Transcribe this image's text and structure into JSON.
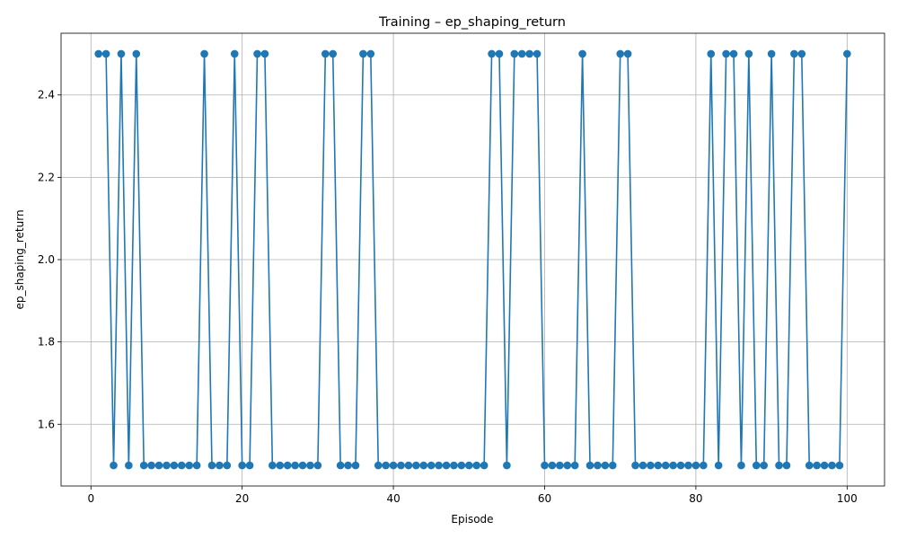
{
  "chart_data": {
    "type": "line",
    "title": "Training – ep_shaping_return",
    "xlabel": "Episode",
    "ylabel": "ep_shaping_return",
    "xlim": [
      -3.95,
      104.95
    ],
    "ylim": [
      1.45,
      2.55
    ],
    "xticks": [
      0,
      20,
      40,
      60,
      80,
      100
    ],
    "yticks": [
      1.6,
      1.8,
      2.0,
      2.2,
      2.4
    ],
    "ytick_labels": [
      "1.6",
      "1.8",
      "2.0",
      "2.2",
      "2.4"
    ],
    "grid": true,
    "marker": "circle",
    "color": "#1f77b4",
    "series": [
      {
        "x": [
          1,
          2,
          3,
          4,
          5,
          6,
          7,
          8,
          9,
          10,
          11,
          12,
          13,
          14,
          15,
          16,
          17,
          18,
          19,
          20,
          21,
          22,
          23,
          24,
          25,
          26,
          27,
          28,
          29,
          30,
          31,
          32,
          33,
          34,
          35,
          36,
          37,
          38,
          39,
          40,
          41,
          42,
          43,
          44,
          45,
          46,
          47,
          48,
          49,
          50,
          51,
          52,
          53,
          54,
          55,
          56,
          57,
          58,
          59,
          60,
          61,
          62,
          63,
          64,
          65,
          66,
          67,
          68,
          69,
          70,
          71,
          72,
          73,
          74,
          75,
          76,
          77,
          78,
          79,
          80,
          81,
          82,
          83,
          84,
          85,
          86,
          87,
          88,
          89,
          90,
          91,
          92,
          93,
          94,
          95,
          96,
          97,
          98,
          99,
          100
        ],
        "y": [
          2.5,
          2.5,
          1.5,
          2.5,
          1.5,
          2.5,
          1.5,
          1.5,
          1.5,
          1.5,
          1.5,
          1.5,
          1.5,
          1.5,
          2.5,
          1.5,
          1.5,
          1.5,
          2.5,
          1.5,
          1.5,
          2.5,
          2.5,
          1.5,
          1.5,
          1.5,
          1.5,
          1.5,
          1.5,
          1.5,
          2.5,
          2.5,
          1.5,
          1.5,
          1.5,
          2.5,
          2.5,
          1.5,
          1.5,
          1.5,
          1.5,
          1.5,
          1.5,
          1.5,
          1.5,
          1.5,
          1.5,
          1.5,
          1.5,
          1.5,
          1.5,
          1.5,
          2.5,
          2.5,
          1.5,
          2.5,
          2.5,
          2.5,
          2.5,
          1.5,
          1.5,
          1.5,
          1.5,
          1.5,
          2.5,
          1.5,
          1.5,
          1.5,
          1.5,
          2.5,
          2.5,
          1.5,
          1.5,
          1.5,
          1.5,
          1.5,
          1.5,
          1.5,
          1.5,
          1.5,
          1.5,
          2.5,
          1.5,
          2.5,
          2.5,
          1.5,
          2.5,
          1.5,
          1.5,
          2.5,
          1.5,
          1.5,
          2.5,
          2.5,
          1.5,
          1.5,
          1.5,
          1.5,
          1.5,
          2.5
        ]
      }
    ]
  }
}
